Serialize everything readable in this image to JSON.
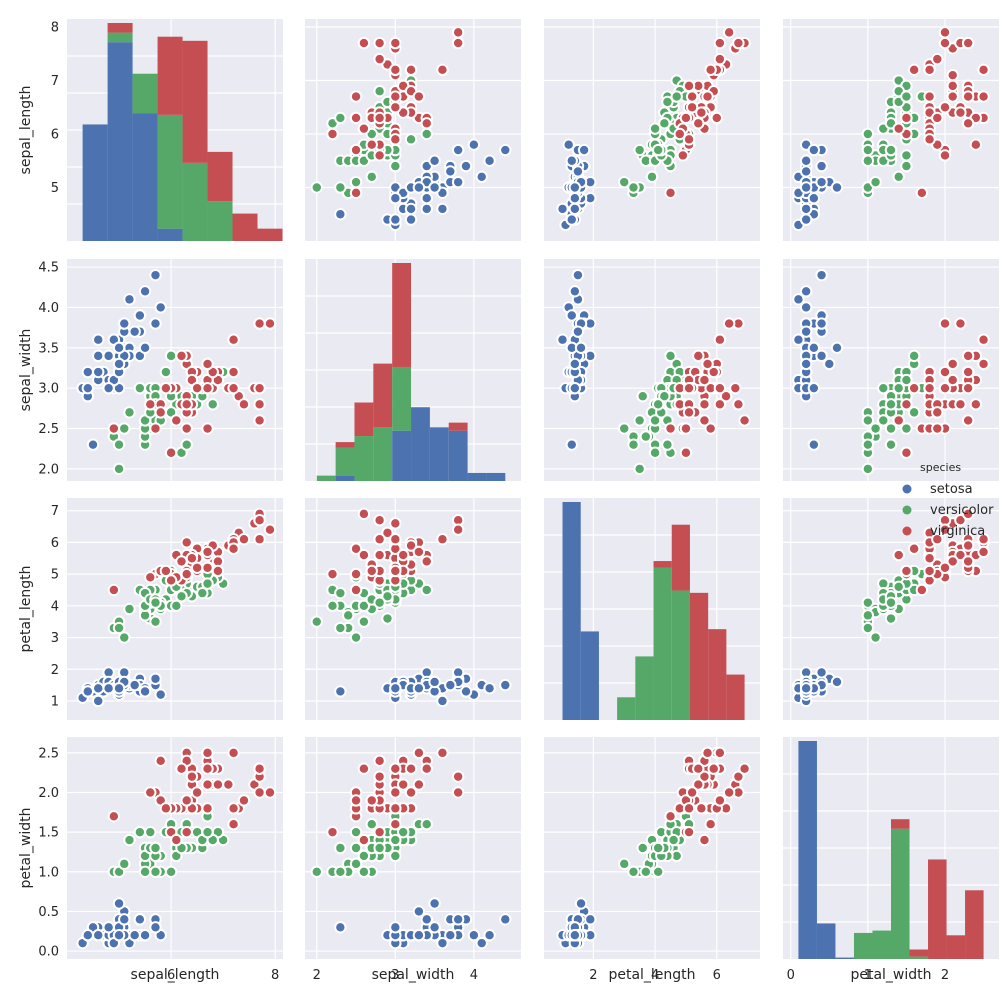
{
  "chart_data": {
    "type": "scatter",
    "title": "",
    "variables": [
      "sepal_length",
      "sepal_width",
      "petal_length",
      "petal_width"
    ],
    "axis_labels": [
      "sepal_length",
      "sepal_width",
      "petal_length",
      "petal_width"
    ],
    "ranges": {
      "sepal_length": [
        4.0,
        8.15
      ],
      "sepal_width": [
        1.85,
        4.6
      ],
      "petal_length": [
        0.4,
        7.4
      ],
      "petal_width": [
        -0.1,
        2.7
      ]
    },
    "ticks": {
      "sepal_length": {
        "row": [
          5,
          6,
          7,
          8
        ],
        "col": [
          6,
          8
        ]
      },
      "sepal_width": {
        "row": [
          2.0,
          2.5,
          3.0,
          3.5,
          4.0,
          4.5
        ],
        "col": [
          2,
          3,
          4
        ]
      },
      "petal_length": {
        "row": [
          1,
          2,
          3,
          4,
          5,
          6,
          7
        ],
        "col": [
          2,
          4,
          6
        ]
      },
      "petal_width": {
        "row": [
          0.0,
          0.5,
          1.0,
          1.5,
          2.0,
          2.5
        ],
        "col": [
          0,
          1,
          2
        ]
      }
    },
    "tick_labels": {
      "sepal_length": {
        "row": [
          "5",
          "6",
          "7",
          "8"
        ],
        "col": [
          "6",
          "8"
        ]
      },
      "sepal_width": {
        "row": [
          "2.0",
          "2.5",
          "3.0",
          "3.5",
          "4.0",
          "4.5"
        ],
        "col": [
          "2",
          "3",
          "4"
        ]
      },
      "petal_length": {
        "row": [
          "1",
          "2",
          "3",
          "4",
          "5",
          "6",
          "7"
        ],
        "col": [
          "2",
          "4",
          "6"
        ]
      },
      "petal_width": {
        "row": [
          "0.0",
          "0.5",
          "1.0",
          "1.5",
          "2.0",
          "2.5"
        ],
        "col": [
          "0",
          "1",
          "2"
        ]
      }
    },
    "legend": {
      "title": "species",
      "placement": "right",
      "entries": [
        "setosa",
        "versicolor",
        "virginica"
      ]
    },
    "colors": {
      "setosa": "#4c72b0",
      "versicolor": "#55a868",
      "virginica": "#c44e52",
      "background": "#eaeaf2",
      "grid": "#ffffff"
    },
    "series": [
      {
        "name": "setosa",
        "points": [
          [
            5.1,
            3.5,
            1.4,
            0.2
          ],
          [
            4.9,
            3.0,
            1.4,
            0.2
          ],
          [
            4.7,
            3.2,
            1.3,
            0.2
          ],
          [
            4.6,
            3.1,
            1.5,
            0.2
          ],
          [
            5.0,
            3.6,
            1.4,
            0.2
          ],
          [
            5.4,
            3.9,
            1.7,
            0.4
          ],
          [
            4.6,
            3.4,
            1.4,
            0.3
          ],
          [
            5.0,
            3.4,
            1.5,
            0.2
          ],
          [
            4.4,
            2.9,
            1.4,
            0.2
          ],
          [
            4.9,
            3.1,
            1.5,
            0.1
          ],
          [
            5.4,
            3.7,
            1.5,
            0.2
          ],
          [
            4.8,
            3.4,
            1.6,
            0.2
          ],
          [
            4.8,
            3.0,
            1.4,
            0.1
          ],
          [
            4.3,
            3.0,
            1.1,
            0.1
          ],
          [
            5.8,
            4.0,
            1.2,
            0.2
          ],
          [
            5.7,
            4.4,
            1.5,
            0.4
          ],
          [
            5.4,
            3.9,
            1.3,
            0.4
          ],
          [
            5.1,
            3.5,
            1.4,
            0.3
          ],
          [
            5.7,
            3.8,
            1.7,
            0.3
          ],
          [
            5.1,
            3.8,
            1.5,
            0.3
          ],
          [
            5.4,
            3.4,
            1.7,
            0.2
          ],
          [
            5.1,
            3.7,
            1.5,
            0.4
          ],
          [
            4.6,
            3.6,
            1.0,
            0.2
          ],
          [
            5.1,
            3.3,
            1.7,
            0.5
          ],
          [
            4.8,
            3.4,
            1.9,
            0.2
          ],
          [
            5.0,
            3.0,
            1.6,
            0.2
          ],
          [
            5.0,
            3.4,
            1.6,
            0.4
          ],
          [
            5.2,
            3.5,
            1.5,
            0.2
          ],
          [
            5.2,
            3.4,
            1.4,
            0.2
          ],
          [
            4.7,
            3.2,
            1.6,
            0.2
          ],
          [
            4.8,
            3.1,
            1.6,
            0.2
          ],
          [
            5.4,
            3.4,
            1.5,
            0.4
          ],
          [
            5.2,
            4.1,
            1.5,
            0.1
          ],
          [
            5.5,
            4.2,
            1.4,
            0.2
          ],
          [
            4.9,
            3.1,
            1.5,
            0.2
          ],
          [
            5.0,
            3.2,
            1.2,
            0.2
          ],
          [
            5.5,
            3.5,
            1.3,
            0.2
          ],
          [
            4.9,
            3.6,
            1.4,
            0.1
          ],
          [
            4.4,
            3.0,
            1.3,
            0.2
          ],
          [
            5.1,
            3.4,
            1.5,
            0.2
          ],
          [
            5.0,
            3.5,
            1.3,
            0.3
          ],
          [
            4.5,
            2.3,
            1.3,
            0.3
          ],
          [
            4.4,
            3.2,
            1.3,
            0.2
          ],
          [
            5.0,
            3.5,
            1.6,
            0.6
          ],
          [
            5.1,
            3.8,
            1.9,
            0.4
          ],
          [
            4.8,
            3.0,
            1.4,
            0.3
          ],
          [
            5.1,
            3.8,
            1.6,
            0.2
          ],
          [
            4.6,
            3.2,
            1.4,
            0.2
          ],
          [
            5.3,
            3.7,
            1.5,
            0.2
          ],
          [
            5.0,
            3.3,
            1.4,
            0.2
          ]
        ]
      },
      {
        "name": "versicolor",
        "points": [
          [
            7.0,
            3.2,
            4.7,
            1.4
          ],
          [
            6.4,
            3.2,
            4.5,
            1.5
          ],
          [
            6.9,
            3.1,
            4.9,
            1.5
          ],
          [
            5.5,
            2.3,
            4.0,
            1.3
          ],
          [
            6.5,
            2.8,
            4.6,
            1.5
          ],
          [
            5.7,
            2.8,
            4.5,
            1.3
          ],
          [
            6.3,
            3.3,
            4.7,
            1.6
          ],
          [
            4.9,
            2.4,
            3.3,
            1.0
          ],
          [
            6.6,
            2.9,
            4.6,
            1.3
          ],
          [
            5.2,
            2.7,
            3.9,
            1.4
          ],
          [
            5.0,
            2.0,
            3.5,
            1.0
          ],
          [
            5.9,
            3.0,
            4.2,
            1.5
          ],
          [
            6.0,
            2.2,
            4.0,
            1.0
          ],
          [
            6.1,
            2.9,
            4.7,
            1.4
          ],
          [
            5.6,
            2.9,
            3.6,
            1.3
          ],
          [
            6.7,
            3.1,
            4.4,
            1.4
          ],
          [
            5.6,
            3.0,
            4.5,
            1.5
          ],
          [
            5.8,
            2.7,
            4.1,
            1.0
          ],
          [
            6.2,
            2.2,
            4.5,
            1.5
          ],
          [
            5.6,
            2.5,
            3.9,
            1.1
          ],
          [
            5.9,
            3.2,
            4.8,
            1.8
          ],
          [
            6.1,
            2.8,
            4.0,
            1.3
          ],
          [
            6.3,
            2.5,
            4.9,
            1.5
          ],
          [
            6.1,
            2.8,
            4.7,
            1.2
          ],
          [
            6.4,
            2.9,
            4.3,
            1.3
          ],
          [
            6.6,
            3.0,
            4.4,
            1.4
          ],
          [
            6.8,
            2.8,
            4.8,
            1.4
          ],
          [
            6.7,
            3.0,
            5.0,
            1.7
          ],
          [
            6.0,
            2.9,
            4.5,
            1.5
          ],
          [
            5.7,
            2.6,
            3.5,
            1.0
          ],
          [
            5.5,
            2.4,
            3.8,
            1.1
          ],
          [
            5.5,
            2.4,
            3.7,
            1.0
          ],
          [
            5.8,
            2.7,
            3.9,
            1.2
          ],
          [
            6.0,
            2.7,
            5.1,
            1.6
          ],
          [
            5.4,
            3.0,
            4.5,
            1.5
          ],
          [
            6.0,
            3.4,
            4.5,
            1.6
          ],
          [
            6.7,
            3.1,
            4.7,
            1.5
          ],
          [
            6.3,
            2.3,
            4.4,
            1.3
          ],
          [
            5.6,
            3.0,
            4.1,
            1.3
          ],
          [
            5.5,
            2.5,
            4.0,
            1.3
          ],
          [
            5.5,
            2.6,
            4.4,
            1.2
          ],
          [
            6.1,
            3.0,
            4.6,
            1.4
          ],
          [
            5.8,
            2.6,
            4.0,
            1.2
          ],
          [
            5.0,
            2.3,
            3.3,
            1.0
          ],
          [
            5.6,
            2.7,
            4.2,
            1.3
          ],
          [
            5.7,
            3.0,
            4.2,
            1.2
          ],
          [
            5.7,
            2.9,
            4.2,
            1.3
          ],
          [
            6.2,
            2.9,
            4.3,
            1.3
          ],
          [
            5.1,
            2.5,
            3.0,
            1.1
          ],
          [
            5.7,
            2.8,
            4.1,
            1.3
          ]
        ]
      },
      {
        "name": "virginica",
        "points": [
          [
            6.3,
            3.3,
            6.0,
            2.5
          ],
          [
            5.8,
            2.7,
            5.1,
            1.9
          ],
          [
            7.1,
            3.0,
            5.9,
            2.1
          ],
          [
            6.3,
            2.9,
            5.6,
            1.8
          ],
          [
            6.5,
            3.0,
            5.8,
            2.2
          ],
          [
            7.6,
            3.0,
            6.6,
            2.1
          ],
          [
            4.9,
            2.5,
            4.5,
            1.7
          ],
          [
            7.3,
            2.9,
            6.3,
            1.8
          ],
          [
            6.7,
            2.5,
            5.8,
            1.8
          ],
          [
            7.2,
            3.6,
            6.1,
            2.5
          ],
          [
            6.5,
            3.2,
            5.1,
            2.0
          ],
          [
            6.4,
            2.7,
            5.3,
            1.9
          ],
          [
            6.8,
            3.0,
            5.5,
            2.1
          ],
          [
            5.7,
            2.5,
            5.0,
            2.0
          ],
          [
            5.8,
            2.8,
            5.1,
            2.4
          ],
          [
            6.4,
            3.2,
            5.3,
            2.3
          ],
          [
            6.5,
            3.0,
            5.5,
            1.8
          ],
          [
            7.7,
            3.8,
            6.7,
            2.2
          ],
          [
            7.7,
            2.6,
            6.9,
            2.3
          ],
          [
            6.0,
            2.2,
            5.0,
            1.5
          ],
          [
            6.9,
            3.2,
            5.7,
            2.3
          ],
          [
            5.6,
            2.8,
            4.9,
            2.0
          ],
          [
            7.7,
            2.8,
            6.7,
            2.0
          ],
          [
            6.3,
            2.7,
            4.9,
            1.8
          ],
          [
            6.7,
            3.3,
            5.7,
            2.1
          ],
          [
            7.2,
            3.2,
            6.0,
            1.8
          ],
          [
            6.2,
            2.8,
            4.8,
            1.8
          ],
          [
            6.1,
            3.0,
            4.9,
            1.8
          ],
          [
            6.4,
            2.8,
            5.6,
            2.1
          ],
          [
            7.2,
            3.0,
            5.8,
            1.6
          ],
          [
            7.4,
            2.8,
            6.1,
            1.9
          ],
          [
            7.9,
            3.8,
            6.4,
            2.0
          ],
          [
            6.4,
            2.8,
            5.6,
            2.2
          ],
          [
            6.3,
            2.8,
            5.1,
            1.5
          ],
          [
            6.1,
            2.6,
            5.6,
            1.4
          ],
          [
            7.7,
            3.0,
            6.1,
            2.3
          ],
          [
            6.3,
            3.4,
            5.6,
            2.4
          ],
          [
            6.4,
            3.1,
            5.5,
            1.8
          ],
          [
            6.0,
            3.0,
            4.8,
            1.8
          ],
          [
            6.9,
            3.1,
            5.4,
            2.1
          ],
          [
            6.7,
            3.1,
            5.6,
            2.4
          ],
          [
            6.9,
            3.1,
            5.1,
            2.3
          ],
          [
            5.8,
            2.7,
            5.1,
            1.9
          ],
          [
            6.8,
            3.2,
            5.9,
            2.3
          ],
          [
            6.7,
            3.3,
            5.7,
            2.5
          ],
          [
            6.7,
            3.0,
            5.2,
            2.3
          ],
          [
            6.3,
            2.5,
            5.0,
            1.9
          ],
          [
            6.5,
            3.0,
            5.2,
            2.0
          ],
          [
            6.2,
            3.4,
            5.4,
            2.3
          ],
          [
            5.9,
            3.0,
            5.1,
            1.8
          ]
        ]
      }
    ],
    "histograms": {
      "sepal_length": {
        "edges": [
          4.3,
          4.78,
          5.26,
          5.74,
          6.22,
          6.7,
          7.18,
          7.66,
          8.14
        ],
        "setosa": [
          0.85,
          1.45,
          0.93,
          0.09,
          0.0,
          0.0,
          0.0,
          0.0
        ],
        "versicolor": [
          0.0,
          0.07,
          0.29,
          0.83,
          0.57,
          0.29,
          0.0,
          0.0
        ],
        "virginica": [
          0.0,
          0.07,
          0.0,
          0.57,
          0.89,
          0.36,
          0.2,
          0.09
        ]
      },
      "sepal_width": {
        "edges": [
          2.0,
          2.24,
          2.48,
          2.72,
          2.96,
          3.2,
          3.44,
          3.68,
          3.92,
          4.16,
          4.4
        ],
        "setosa": [
          0.0,
          0.08,
          0.0,
          0.0,
          0.75,
          1.1,
          0.8,
          0.75,
          0.12,
          0.12
        ],
        "versicolor": [
          0.08,
          0.42,
          0.67,
          0.8,
          0.95,
          0.0,
          0.0,
          0.0,
          0.0,
          0.0
        ],
        "virginica": [
          0.0,
          0.08,
          0.5,
          0.95,
          1.55,
          0.0,
          0.0,
          0.12,
          0.0,
          0.0
        ]
      },
      "petal_length": {
        "edges": [
          1.0,
          1.59,
          2.18,
          2.77,
          3.36,
          3.95,
          4.54,
          5.13,
          5.72,
          6.31,
          6.9
        ],
        "setosa": [
          0.96,
          0.39,
          0.0,
          0.0,
          0.0,
          0.0,
          0.0,
          0.0,
          0.0,
          0.0
        ],
        "versicolor": [
          0.0,
          0.0,
          0.0,
          0.1,
          0.28,
          0.67,
          0.57,
          0.0,
          0.0,
          0.0
        ],
        "virginica": [
          0.0,
          0.0,
          0.0,
          0.0,
          0.0,
          0.03,
          0.29,
          0.56,
          0.4,
          0.2
        ]
      },
      "petal_width": {
        "edges": [
          0.1,
          0.34,
          0.58,
          0.82,
          1.06,
          1.3,
          1.54,
          1.78,
          2.02,
          2.26,
          2.5
        ],
        "setosa": [
          4.6,
          0.75,
          0.03,
          0.0,
          0.0,
          0.0,
          0.0,
          0.0,
          0.0,
          0.0
        ],
        "versicolor": [
          0.0,
          0.0,
          0.0,
          0.55,
          0.6,
          2.75,
          0.05,
          0.0,
          0.0,
          0.0
        ],
        "virginica": [
          0.0,
          0.0,
          0.0,
          0.0,
          0.0,
          0.2,
          0.15,
          2.1,
          0.5,
          1.45
        ]
      }
    }
  }
}
